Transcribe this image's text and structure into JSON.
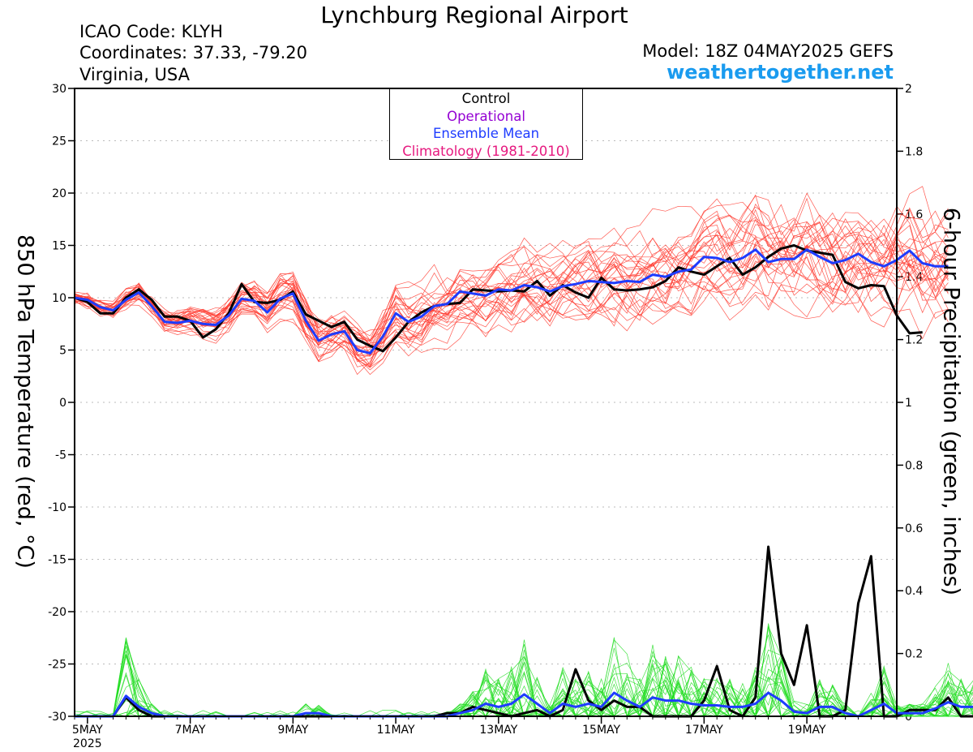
{
  "header": {
    "title": "Lynchburg Regional Airport",
    "icao": "ICAO Code: KLYH",
    "coords": "Coordinates: 37.33, -79.20",
    "region": "Virginia, USA",
    "model": "Model: 18Z 04MAY2025 GEFS",
    "site": "weathertogether.net"
  },
  "legend": {
    "control": "Control",
    "operational": "Operational",
    "mean": "Ensemble Mean",
    "climo": "Climatology (1981-2010)"
  },
  "colors": {
    "control": "#000000",
    "operational": "#9400d3",
    "mean": "#1e3cff",
    "climo": "#e6197f",
    "temp_members": "#ff3b30",
    "precip_members": "#22dd22",
    "site": "#1a9bef"
  },
  "chart_data": {
    "type": "line",
    "ylabel": "850 hPa Temperature (red, °C)",
    "y2label": "6-hour Precipitation (green, inches)",
    "ylim": [
      -30,
      30
    ],
    "y2lim": [
      0,
      2
    ],
    "yticks": [
      "30",
      "25",
      "20",
      "15",
      "10",
      "5",
      "0",
      "-5",
      "-10",
      "-15",
      "-20",
      "-25",
      "-30"
    ],
    "y2ticks": [
      "2",
      "1.8",
      "1.6",
      "1.4",
      "1.2",
      "1",
      "0.8",
      "0.6",
      "0.4",
      "0.2",
      "0"
    ],
    "xrange_days": [
      4.75,
      20.75
    ],
    "xticks": [
      {
        "day": 5,
        "label": "5MAY",
        "sub": "2025"
      },
      {
        "day": 7,
        "label": "7MAY"
      },
      {
        "day": 9,
        "label": "9MAY"
      },
      {
        "day": 11,
        "label": "11MAY"
      },
      {
        "day": 13,
        "label": "13MAY"
      },
      {
        "day": 15,
        "label": "15MAY"
      },
      {
        "day": 17,
        "label": "17MAY"
      },
      {
        "day": 19,
        "label": "19MAY"
      }
    ],
    "grid": true,
    "legend_position": "top-center",
    "x_start_day": 4.75,
    "x_step_days": 0.25,
    "series": [
      {
        "name": "Control",
        "kind": "temperature",
        "values": [
          10,
          9.6,
          8.5,
          8.5,
          10,
          10.8,
          9.8,
          8.2,
          8.2,
          7.8,
          6.2,
          7,
          8.5,
          11.3,
          9.6,
          9.5,
          9.8,
          10.6,
          8.4,
          7.8,
          7.2,
          7.7,
          6,
          5.4,
          4.9,
          6.2,
          7.7,
          8.6,
          9.2,
          9.4,
          9.5,
          10.8,
          10.7,
          10.6,
          10.7,
          10.6,
          11.6,
          10.2,
          11.2,
          10.5,
          10,
          11.9,
          10.8,
          10.7,
          10.8,
          11,
          11.6,
          12.9,
          12.5,
          12.2,
          13,
          13.8,
          12.2,
          12.9,
          13.9,
          14.7,
          15,
          14.5,
          14.3,
          14.1,
          11.5,
          10.9,
          11.2,
          11.1,
          8.3,
          6.6,
          6.7
        ]
      },
      {
        "name": "Ensemble Mean",
        "kind": "temperature",
        "values": [
          10,
          9.8,
          9.1,
          8.8,
          9.8,
          10.5,
          9.2,
          7.7,
          7.6,
          7.8,
          7.5,
          7.4,
          8.3,
          9.9,
          9.7,
          8.6,
          9.9,
          10.4,
          7.8,
          5.9,
          6.5,
          6.8,
          5,
          4.7,
          6.3,
          8.5,
          7.7,
          8.2,
          9.2,
          9.4,
          10.6,
          10.4,
          10.2,
          10.8,
          10.7,
          11.2,
          11,
          10.6,
          11.1,
          11.3,
          11.6,
          11.5,
          11.4,
          11.6,
          11.5,
          12.2,
          12,
          12.5,
          12.7,
          13.9,
          13.8,
          13.4,
          13.8,
          14.6,
          13.4,
          13.7,
          13.7,
          14.6,
          13.9,
          13.3,
          13.6,
          14.2,
          13.4,
          13,
          13.6,
          14.5,
          13.3,
          13,
          13
        ]
      },
      {
        "name": "Control",
        "kind": "precipitation",
        "values": [
          0,
          0,
          0,
          0,
          0.06,
          0.02,
          0,
          0,
          0,
          0,
          0,
          0,
          0,
          0,
          0,
          0,
          0,
          0,
          0,
          0,
          0,
          0,
          0,
          0,
          0,
          0,
          0,
          0,
          0,
          0.01,
          0.01,
          0.03,
          0.02,
          0.01,
          0,
          0.01,
          0.02,
          0,
          0.02,
          0.15,
          0.05,
          0.02,
          0.05,
          0.03,
          0.03,
          0,
          0,
          0,
          0,
          0.05,
          0.16,
          0.02,
          0,
          0.06,
          0.54,
          0.2,
          0.1,
          0.29,
          0,
          0,
          0.02,
          0.36,
          0.51,
          0,
          0,
          0.02,
          0.02,
          0.02,
          0.06,
          0,
          0,
          0
        ]
      },
      {
        "name": "Ensemble Mean",
        "kind": "precipitation",
        "values": [
          0,
          0,
          0,
          0,
          0.065,
          0.03,
          0.01,
          0,
          0,
          0,
          0,
          0,
          0,
          0,
          0,
          0,
          0,
          0,
          0.01,
          0.01,
          0,
          0,
          0,
          0,
          0,
          0,
          0,
          0,
          0,
          0,
          0.01,
          0.02,
          0.04,
          0.03,
          0.04,
          0.07,
          0.04,
          0.01,
          0.04,
          0.03,
          0.04,
          0.03,
          0.075,
          0.05,
          0.03,
          0.06,
          0.05,
          0.05,
          0.04,
          0.035,
          0.035,
          0.03,
          0.03,
          0.04,
          0.075,
          0.05,
          0.015,
          0.01,
          0.03,
          0.03,
          0.01,
          0,
          0.02,
          0.04,
          0.01,
          0.01,
          0.01,
          0.025,
          0.045,
          0.03,
          0.03
        ]
      }
    ]
  }
}
